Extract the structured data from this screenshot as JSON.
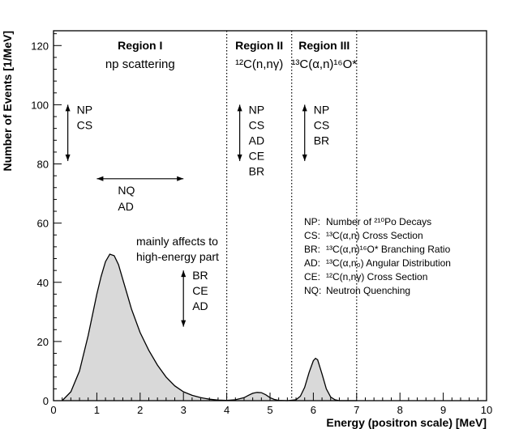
{
  "chart_data": {
    "type": "area",
    "xlabel": "Energy (positron scale) [MeV]",
    "ylabel": "Number of Events [1/MeV]",
    "xlim": [
      0,
      10
    ],
    "ylim": [
      0,
      125
    ],
    "x_ticks": [
      0,
      1,
      2,
      3,
      4,
      5,
      6,
      7,
      8,
      9,
      10
    ],
    "y_ticks": [
      0,
      20,
      40,
      60,
      80,
      100,
      120
    ],
    "grid": false,
    "fill_color": "#d9d9d9",
    "region_boundaries": [
      4.0,
      5.5,
      7.0
    ],
    "regions": [
      {
        "title": "Region I",
        "subtitle": "np scattering",
        "x_center": 2.0
      },
      {
        "title": "Region II",
        "subtitle": "¹²C(n,nγ)",
        "x_center": 4.75
      },
      {
        "title": "Region III",
        "subtitle": "¹³C(α,n)¹⁶O*",
        "x_center": 6.25
      }
    ],
    "series": [
      {
        "x": [
          0.2,
          0.4,
          0.6,
          0.8,
          1.0,
          1.1,
          1.2,
          1.3,
          1.4,
          1.5,
          1.6,
          1.7,
          1.8,
          2.0,
          2.2,
          2.4,
          2.6,
          2.8,
          3.0,
          3.2,
          3.4,
          3.6,
          3.8,
          4.0,
          4.2,
          4.4,
          4.5,
          4.6,
          4.7,
          4.8,
          4.9,
          5.0,
          5.1,
          5.2,
          5.4,
          5.6,
          5.7,
          5.8,
          5.9,
          6.0,
          6.05,
          6.1,
          6.2,
          6.3,
          6.4,
          6.5,
          6.6,
          7.0
        ],
        "y": [
          0,
          3,
          10,
          22,
          36,
          42,
          47,
          49.5,
          49,
          46,
          41,
          36,
          31,
          23,
          17,
          12,
          8,
          5,
          3,
          1.8,
          1,
          0.5,
          0.2,
          0.1,
          0.3,
          1.0,
          1.8,
          2.5,
          2.8,
          2.7,
          2.0,
          1.0,
          0.4,
          0.1,
          0,
          0.3,
          1.5,
          4.5,
          9.5,
          13.5,
          14.3,
          13.8,
          9,
          4,
          1.2,
          0.3,
          0,
          0
        ]
      }
    ],
    "arrows": [
      {
        "type": "vertical",
        "x": 0.33,
        "y_range": [
          81,
          100
        ],
        "labels": [
          "NP",
          "CS"
        ]
      },
      {
        "type": "horizontal",
        "y": 75,
        "x_range": [
          1.0,
          3.0
        ],
        "labels": [
          "NQ",
          "AD"
        ]
      },
      {
        "type": "vertical",
        "x": 4.3,
        "y_range": [
          81,
          100
        ],
        "labels": [
          "NP",
          "CS",
          "AD",
          "CE",
          "BR"
        ]
      },
      {
        "type": "vertical",
        "x": 5.8,
        "y_range": [
          81,
          100
        ],
        "labels": [
          "NP",
          "CS",
          "BR"
        ]
      },
      {
        "type": "vertical",
        "x": 3.0,
        "y_range": [
          25,
          44
        ],
        "labels": [
          "BR",
          "CE",
          "AD"
        ]
      }
    ],
    "annotation": {
      "lines": [
        "mainly affects to",
        "high-energy part"
      ]
    },
    "legend_position": "right-middle",
    "legend": [
      {
        "abbr": "NP",
        "text": "Number of ²¹⁰Po Decays"
      },
      {
        "abbr": "CS",
        "text": "¹³C(α,n) Cross Section"
      },
      {
        "abbr": "BR",
        "text": "¹³C(α,n)¹⁶O* Branching Ratio"
      },
      {
        "abbr": "AD",
        "text": "¹³C(α,n₀) Angular Distribution"
      },
      {
        "abbr": "CE",
        "text": "¹²C(n,nγ) Cross Section"
      },
      {
        "abbr": "NQ",
        "text": "Neutron Quenching"
      }
    ]
  }
}
